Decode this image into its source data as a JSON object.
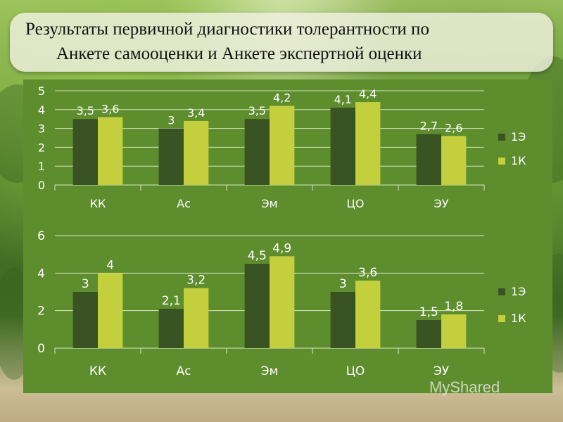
{
  "title": {
    "line1": "Результаты первичной диагностики толерантности по",
    "line2": "Анкете самооценки и Анкете экспертной оценки"
  },
  "colors": {
    "series_1E": "#3a5322",
    "series_1K": "#c3cf3d",
    "panel": "#5e8d2e",
    "text": "#ffffff"
  },
  "watermark": "MyShared",
  "chart_data": [
    {
      "type": "bar",
      "categories": [
        "КК",
        "Ас",
        "Эм",
        "ЦО",
        "ЭУ"
      ],
      "series": [
        {
          "name": "1Э",
          "values": [
            3.5,
            3,
            3.5,
            4.1,
            2.7
          ],
          "labels": [
            "3,5",
            "3",
            "3,5",
            "4,1",
            "2,7"
          ]
        },
        {
          "name": "1К",
          "values": [
            3.6,
            3.4,
            4.2,
            4.4,
            2.6
          ],
          "labels": [
            "3,6",
            "3,4",
            "4,2",
            "4,4",
            "2,6"
          ]
        }
      ],
      "ylim": [
        0,
        5
      ],
      "yticks": [
        "0",
        "1",
        "2",
        "3",
        "4",
        "5"
      ],
      "grid": true,
      "legend": "right"
    },
    {
      "type": "bar",
      "categories": [
        "КК",
        "Ас",
        "Эм",
        "ЦО",
        "ЭУ"
      ],
      "series": [
        {
          "name": "1Э",
          "values": [
            3,
            2.1,
            4.5,
            3,
            1.5
          ],
          "labels": [
            "3",
            "2,1",
            "4,5",
            "3",
            "1,5"
          ]
        },
        {
          "name": "1К",
          "values": [
            4,
            3.2,
            4.9,
            3.6,
            1.8
          ],
          "labels": [
            "4",
            "3,2",
            "4,9",
            "3,6",
            "1,8"
          ]
        }
      ],
      "ylim": [
        0,
        6
      ],
      "yticks": [
        "0",
        "2",
        "4",
        "6"
      ],
      "grid": true,
      "legend": "right"
    }
  ]
}
